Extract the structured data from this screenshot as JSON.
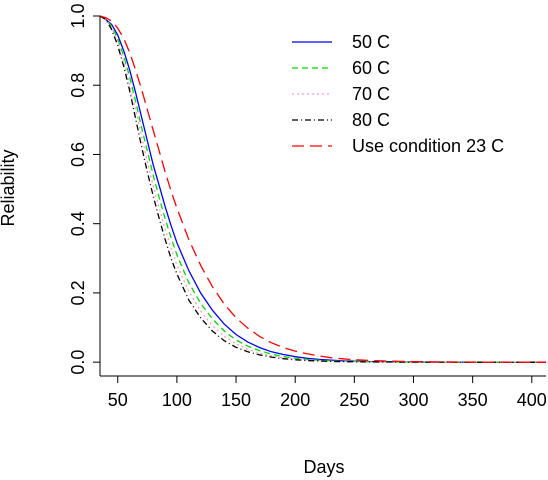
{
  "chart_data": {
    "type": "line",
    "title": "",
    "xlabel": "Days",
    "ylabel": "Reliability",
    "xlim": [
      35,
      412
    ],
    "ylim": [
      -0.04,
      1.0
    ],
    "xticks": [
      50,
      100,
      150,
      200,
      250,
      300,
      350,
      400
    ],
    "yticks": [
      0.0,
      0.2,
      0.4,
      0.6,
      0.8,
      1.0
    ],
    "xtick_labels": [
      "50",
      "100",
      "150",
      "200",
      "250",
      "300",
      "350",
      "400"
    ],
    "ytick_labels": [
      "0.0",
      "0.2",
      "0.4",
      "0.6",
      "0.8",
      "1.0"
    ],
    "grid": false,
    "legend_position": "top-right",
    "x": [
      35,
      40,
      45,
      50,
      55,
      60,
      65,
      70,
      75,
      80,
      85,
      90,
      95,
      100,
      110,
      120,
      130,
      140,
      150,
      160,
      170,
      180,
      190,
      200,
      210,
      220,
      230,
      240,
      250,
      260,
      270,
      280,
      290,
      300,
      320,
      340,
      360,
      380,
      400,
      412
    ],
    "series": [
      {
        "name": "50 C",
        "color": "#0000ff",
        "dash": "solid",
        "values": [
          1.0,
          0.99,
          0.975,
          0.945,
          0.9,
          0.845,
          0.78,
          0.71,
          0.64,
          0.57,
          0.51,
          0.45,
          0.395,
          0.345,
          0.265,
          0.2,
          0.15,
          0.11,
          0.08,
          0.058,
          0.042,
          0.03,
          0.022,
          0.016,
          0.011,
          0.008,
          0.006,
          0.004,
          0.003,
          0.002,
          0.0015,
          0.001,
          0.0007,
          0.0005,
          0.0002,
          0.0001,
          0.0,
          0.0,
          0.0,
          0.0
        ]
      },
      {
        "name": "60 C",
        "color": "#00dd00",
        "dash": "6,4",
        "values": [
          1.0,
          0.99,
          0.97,
          0.935,
          0.885,
          0.825,
          0.755,
          0.68,
          0.61,
          0.54,
          0.475,
          0.415,
          0.36,
          0.31,
          0.23,
          0.17,
          0.125,
          0.09,
          0.064,
          0.046,
          0.033,
          0.023,
          0.016,
          0.011,
          0.008,
          0.0055,
          0.004,
          0.0028,
          0.002,
          0.0014,
          0.001,
          0.0007,
          0.0005,
          0.0003,
          0.0001,
          0.0,
          0.0,
          0.0,
          0.0,
          0.0
        ]
      },
      {
        "name": "70 C",
        "color": "#ff99bb",
        "dash": "2,3",
        "values": [
          1.0,
          0.99,
          0.965,
          0.925,
          0.87,
          0.805,
          0.73,
          0.655,
          0.58,
          0.51,
          0.445,
          0.385,
          0.33,
          0.28,
          0.205,
          0.148,
          0.105,
          0.075,
          0.053,
          0.037,
          0.026,
          0.018,
          0.0125,
          0.0087,
          0.006,
          0.0042,
          0.0029,
          0.002,
          0.0014,
          0.001,
          0.0007,
          0.0005,
          0.0003,
          0.0002,
          0.0001,
          0.0,
          0.0,
          0.0,
          0.0,
          0.0
        ]
      },
      {
        "name": "80 C",
        "color": "#000000",
        "dash": "6,3,1,3",
        "values": [
          1.0,
          0.99,
          0.96,
          0.915,
          0.855,
          0.785,
          0.705,
          0.625,
          0.55,
          0.48,
          0.415,
          0.355,
          0.3,
          0.255,
          0.18,
          0.128,
          0.09,
          0.062,
          0.043,
          0.03,
          0.021,
          0.0145,
          0.01,
          0.0069,
          0.0048,
          0.0033,
          0.0023,
          0.0016,
          0.0011,
          0.0008,
          0.0005,
          0.0004,
          0.0003,
          0.0002,
          0.0001,
          0.0,
          0.0,
          0.0,
          0.0,
          0.0
        ]
      },
      {
        "name": "Use condition 23 C",
        "color": "#ff0000",
        "dash": "12,6",
        "values": [
          1.0,
          0.995,
          0.985,
          0.965,
          0.935,
          0.895,
          0.845,
          0.79,
          0.73,
          0.67,
          0.61,
          0.55,
          0.495,
          0.445,
          0.355,
          0.28,
          0.218,
          0.168,
          0.128,
          0.098,
          0.074,
          0.056,
          0.042,
          0.032,
          0.024,
          0.018,
          0.013,
          0.0098,
          0.0072,
          0.0053,
          0.0039,
          0.0029,
          0.0021,
          0.0015,
          0.0008,
          0.0004,
          0.0002,
          0.0001,
          0.0,
          0.0
        ]
      }
    ]
  }
}
